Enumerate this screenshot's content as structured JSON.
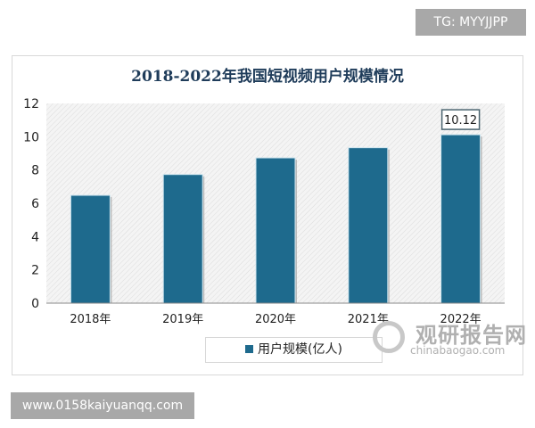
{
  "watermark_top": "TG: MYYJJPP",
  "watermark_bottom": "www.0158kaiyuanqq.com",
  "source_logo": {
    "cn": "观研报告网",
    "en": "chinabaogao.com"
  },
  "chart_data": {
    "type": "bar",
    "title": "2018-2022年我国短视频用户规模情况",
    "categories": [
      "2018年",
      "2019年",
      "2020年",
      "2021年",
      "2022年"
    ],
    "series": [
      {
        "name": "用户规模(亿人)",
        "values": [
          6.48,
          7.73,
          8.73,
          9.34,
          10.12
        ],
        "color": "#1e6a8d"
      }
    ],
    "data_labels": [
      {
        "category": "2022年",
        "text": "10.12"
      }
    ],
    "yticks": [
      "0",
      "2",
      "4",
      "6",
      "8",
      "10",
      "12"
    ],
    "ylim": [
      0,
      12
    ],
    "xlabel": "",
    "ylabel": "",
    "grid": false,
    "legend": "bottom"
  }
}
